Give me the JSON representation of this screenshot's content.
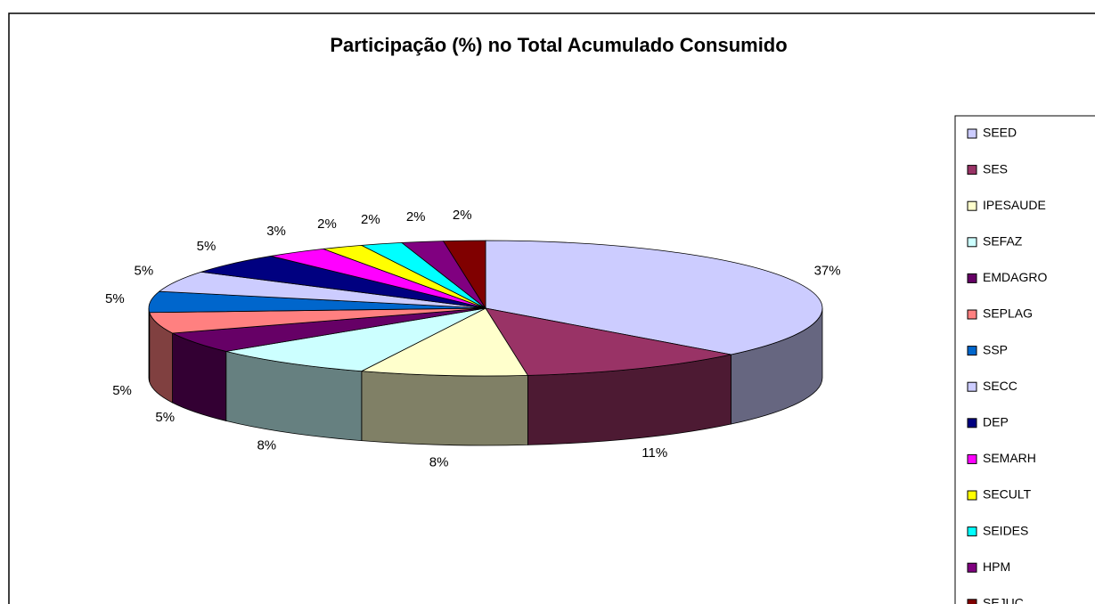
{
  "chart_data": {
    "type": "pie",
    "title": "Participação (%) no Total Acumulado Consumido",
    "categories": [
      "SEED",
      "SES",
      "IPESAUDE",
      "SEFAZ",
      "EMDAGRO",
      "SEPLAG",
      "SSP",
      "SECC",
      "DEP",
      "SEMARH",
      "SECULT",
      "SEIDES",
      "HPM",
      "SEJUC"
    ],
    "values": [
      37,
      11,
      8,
      8,
      5,
      5,
      5,
      5,
      5,
      3,
      2,
      2,
      2,
      2
    ],
    "value_labels": [
      "37%",
      "11%",
      "8%",
      "8%",
      "5%",
      "5%",
      "5%",
      "5%",
      "5%",
      "3%",
      "2%",
      "2%",
      "2%",
      "2%"
    ],
    "colors": [
      "#ccccff",
      "#993366",
      "#ffffcc",
      "#ccffff",
      "#660066",
      "#ff8080",
      "#0066cc",
      "#ccccff",
      "#000080",
      "#ff00ff",
      "#ffff00",
      "#00ffff",
      "#800080",
      "#800000"
    ],
    "legend": "right"
  }
}
